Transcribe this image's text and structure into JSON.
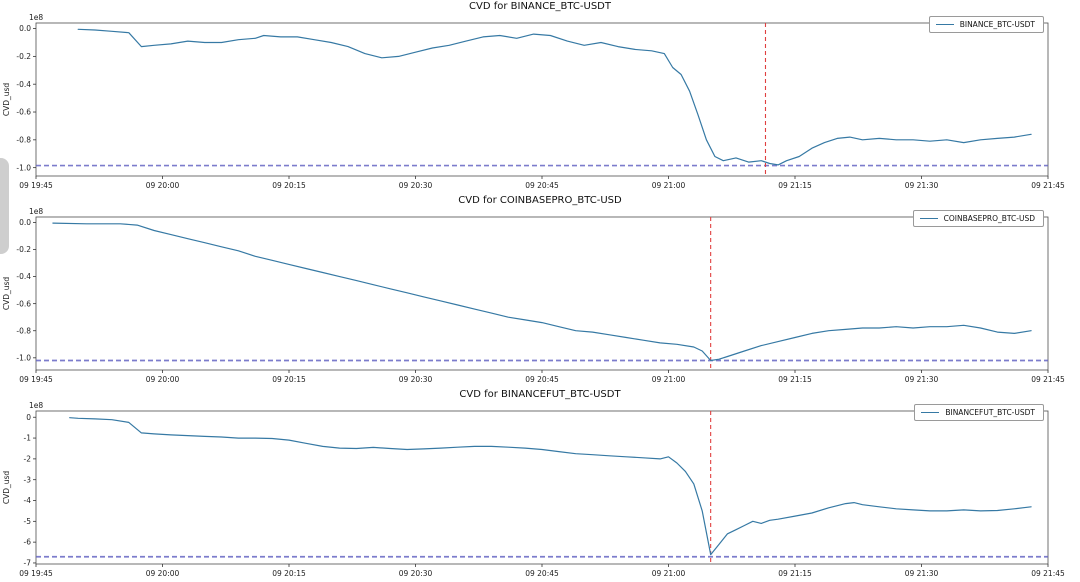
{
  "page": {
    "background": "#ffffff"
  },
  "chart_data": [
    {
      "type": "line",
      "title": "CVD for BINANCE_BTC-USDT",
      "legend": "BINANCE_BTC-USDT",
      "ylabel": "CVD_usd",
      "offset_label": "1e8",
      "xlim": [
        0,
        120
      ],
      "ylim": [
        -1.06,
        0.04
      ],
      "x_ticks": {
        "labels": [
          "09 19:45",
          "09 20:00",
          "09 20:15",
          "09 20:30",
          "09 20:45",
          "09 21:00",
          "09 21:15",
          "09 21:30",
          "09 21:45"
        ],
        "minutes": [
          0,
          15,
          30,
          45,
          60,
          75,
          90,
          105,
          120
        ]
      },
      "y_ticks": {
        "labels": [
          "0.0",
          "-0.2",
          "-0.4",
          "-0.6",
          "-0.8",
          "-1.0"
        ],
        "values": [
          0.0,
          -0.2,
          -0.4,
          -0.6,
          -0.8,
          -1.0
        ]
      },
      "vline": {
        "x_minutes": 86.5,
        "color": "#e04040",
        "style": "dashed"
      },
      "hline": {
        "y": -0.985,
        "color": "#6666c4",
        "style": "dashed"
      },
      "series": [
        {
          "name": "BINANCE_BTC-USDT",
          "color": "#3679a4",
          "points": [
            [
              5,
              -0.005
            ],
            [
              7,
              -0.01
            ],
            [
              9,
              -0.02
            ],
            [
              11,
              -0.03
            ],
            [
              12.5,
              -0.13
            ],
            [
              14,
              -0.12
            ],
            [
              16,
              -0.11
            ],
            [
              18,
              -0.09
            ],
            [
              20,
              -0.1
            ],
            [
              22,
              -0.1
            ],
            [
              24,
              -0.08
            ],
            [
              26,
              -0.07
            ],
            [
              27,
              -0.05
            ],
            [
              29,
              -0.06
            ],
            [
              31,
              -0.06
            ],
            [
              33,
              -0.08
            ],
            [
              35,
              -0.1
            ],
            [
              37,
              -0.13
            ],
            [
              39,
              -0.18
            ],
            [
              41,
              -0.21
            ],
            [
              43,
              -0.2
            ],
            [
              45,
              -0.17
            ],
            [
              47,
              -0.14
            ],
            [
              49,
              -0.12
            ],
            [
              51,
              -0.09
            ],
            [
              53,
              -0.06
            ],
            [
              55,
              -0.05
            ],
            [
              57,
              -0.07
            ],
            [
              59,
              -0.04
            ],
            [
              61,
              -0.05
            ],
            [
              63,
              -0.09
            ],
            [
              65,
              -0.12
            ],
            [
              67,
              -0.1
            ],
            [
              69,
              -0.13
            ],
            [
              71,
              -0.15
            ],
            [
              73,
              -0.16
            ],
            [
              74.5,
              -0.18
            ],
            [
              75.5,
              -0.28
            ],
            [
              76.5,
              -0.33
            ],
            [
              77.5,
              -0.45
            ],
            [
              78.5,
              -0.62
            ],
            [
              79.5,
              -0.8
            ],
            [
              80.5,
              -0.92
            ],
            [
              81.5,
              -0.95
            ],
            [
              83,
              -0.93
            ],
            [
              84.5,
              -0.96
            ],
            [
              86,
              -0.95
            ],
            [
              87,
              -0.97
            ],
            [
              88,
              -0.98
            ],
            [
              89,
              -0.95
            ],
            [
              90.5,
              -0.92
            ],
            [
              92,
              -0.86
            ],
            [
              93.5,
              -0.82
            ],
            [
              95,
              -0.79
            ],
            [
              96.5,
              -0.78
            ],
            [
              98,
              -0.8
            ],
            [
              100,
              -0.79
            ],
            [
              102,
              -0.8
            ],
            [
              104,
              -0.8
            ],
            [
              106,
              -0.81
            ],
            [
              108,
              -0.8
            ],
            [
              110,
              -0.82
            ],
            [
              112,
              -0.8
            ],
            [
              114,
              -0.79
            ],
            [
              116,
              -0.78
            ],
            [
              118,
              -0.76
            ]
          ]
        }
      ]
    },
    {
      "type": "line",
      "title": "CVD for COINBASEPRO_BTC-USD",
      "legend": "COINBASEPRO_BTC-USD",
      "ylabel": "CVD_usd",
      "offset_label": "1e8",
      "xlim": [
        0,
        120
      ],
      "ylim": [
        -1.09,
        0.04
      ],
      "x_ticks": {
        "labels": [
          "09 19:45",
          "09 20:00",
          "09 20:15",
          "09 20:30",
          "09 20:45",
          "09 21:00",
          "09 21:15",
          "09 21:30",
          "09 21:45"
        ],
        "minutes": [
          0,
          15,
          30,
          45,
          60,
          75,
          90,
          105,
          120
        ]
      },
      "y_ticks": {
        "labels": [
          "0.0",
          "-0.2",
          "-0.4",
          "-0.6",
          "-0.8",
          "-1.0"
        ],
        "values": [
          0.0,
          -0.2,
          -0.4,
          -0.6,
          -0.8,
          -1.0
        ]
      },
      "vline": {
        "x_minutes": 80,
        "color": "#e04040",
        "style": "dashed"
      },
      "hline": {
        "y": -1.02,
        "color": "#6666c4",
        "style": "dashed"
      },
      "series": [
        {
          "name": "COINBASEPRO_BTC-USD",
          "color": "#3679a4",
          "points": [
            [
              2,
              -0.005
            ],
            [
              6,
              -0.01
            ],
            [
              10,
              -0.01
            ],
            [
              12,
              -0.02
            ],
            [
              14,
              -0.06
            ],
            [
              16,
              -0.09
            ],
            [
              18,
              -0.12
            ],
            [
              20,
              -0.15
            ],
            [
              22,
              -0.18
            ],
            [
              24,
              -0.21
            ],
            [
              26,
              -0.25
            ],
            [
              28,
              -0.28
            ],
            [
              30,
              -0.31
            ],
            [
              32,
              -0.34
            ],
            [
              34,
              -0.37
            ],
            [
              36,
              -0.4
            ],
            [
              38,
              -0.43
            ],
            [
              40,
              -0.46
            ],
            [
              42,
              -0.49
            ],
            [
              44,
              -0.52
            ],
            [
              46,
              -0.55
            ],
            [
              48,
              -0.58
            ],
            [
              50,
              -0.61
            ],
            [
              52,
              -0.64
            ],
            [
              54,
              -0.67
            ],
            [
              56,
              -0.7
            ],
            [
              58,
              -0.72
            ],
            [
              60,
              -0.74
            ],
            [
              62,
              -0.77
            ],
            [
              64,
              -0.8
            ],
            [
              66,
              -0.81
            ],
            [
              68,
              -0.83
            ],
            [
              70,
              -0.85
            ],
            [
              72,
              -0.87
            ],
            [
              74,
              -0.89
            ],
            [
              76,
              -0.9
            ],
            [
              78,
              -0.92
            ],
            [
              79,
              -0.95
            ],
            [
              80,
              -1.02
            ],
            [
              81,
              -1.01
            ],
            [
              82,
              -0.99
            ],
            [
              84,
              -0.95
            ],
            [
              86,
              -0.91
            ],
            [
              88,
              -0.88
            ],
            [
              90,
              -0.85
            ],
            [
              92,
              -0.82
            ],
            [
              94,
              -0.8
            ],
            [
              96,
              -0.79
            ],
            [
              98,
              -0.78
            ],
            [
              100,
              -0.78
            ],
            [
              102,
              -0.77
            ],
            [
              104,
              -0.78
            ],
            [
              106,
              -0.77
            ],
            [
              108,
              -0.77
            ],
            [
              110,
              -0.76
            ],
            [
              112,
              -0.78
            ],
            [
              114,
              -0.81
            ],
            [
              116,
              -0.82
            ],
            [
              118,
              -0.8
            ]
          ]
        }
      ]
    },
    {
      "type": "line",
      "title": "CVD for BINANCEFUT_BTC-USDT",
      "legend": "BINANCEFUT_BTC-USDT",
      "ylabel": "CVD_usd",
      "offset_label": "1e8",
      "xlim": [
        0,
        120
      ],
      "ylim": [
        -7.05,
        0.3
      ],
      "x_ticks": {
        "labels": [
          "09 19:45",
          "09 20:00",
          "09 20:15",
          "09 20:30",
          "09 20:45",
          "09 21:00",
          "09 21:15",
          "09 21:30",
          "09 21:45"
        ],
        "minutes": [
          0,
          15,
          30,
          45,
          60,
          75,
          90,
          105,
          120
        ]
      },
      "y_ticks": {
        "labels": [
          "0",
          "-1",
          "-2",
          "-3",
          "-4",
          "-5",
          "-6",
          "-7"
        ],
        "values": [
          0,
          -1,
          -2,
          -3,
          -4,
          -5,
          -6,
          -7
        ]
      },
      "vline": {
        "x_minutes": 80,
        "color": "#e04040",
        "style": "dashed"
      },
      "hline": {
        "y": -6.7,
        "color": "#6666c4",
        "style": "dashed"
      },
      "series": [
        {
          "name": "BINANCEFUT_BTC-USDT",
          "color": "#3679a4",
          "points": [
            [
              4,
              -0.02
            ],
            [
              5,
              -0.05
            ],
            [
              7,
              -0.08
            ],
            [
              9,
              -0.12
            ],
            [
              11,
              -0.25
            ],
            [
              12.5,
              -0.75
            ],
            [
              14,
              -0.8
            ],
            [
              16,
              -0.85
            ],
            [
              18,
              -0.88
            ],
            [
              20,
              -0.92
            ],
            [
              22,
              -0.95
            ],
            [
              24,
              -1.0
            ],
            [
              26,
              -1.0
            ],
            [
              28,
              -1.02
            ],
            [
              30,
              -1.1
            ],
            [
              32,
              -1.25
            ],
            [
              34,
              -1.4
            ],
            [
              36,
              -1.48
            ],
            [
              38,
              -1.5
            ],
            [
              40,
              -1.45
            ],
            [
              42,
              -1.5
            ],
            [
              44,
              -1.55
            ],
            [
              46,
              -1.52
            ],
            [
              48,
              -1.48
            ],
            [
              50,
              -1.44
            ],
            [
              52,
              -1.4
            ],
            [
              54,
              -1.4
            ],
            [
              56,
              -1.44
            ],
            [
              58,
              -1.48
            ],
            [
              60,
              -1.55
            ],
            [
              62,
              -1.65
            ],
            [
              64,
              -1.75
            ],
            [
              66,
              -1.8
            ],
            [
              68,
              -1.85
            ],
            [
              70,
              -1.9
            ],
            [
              72,
              -1.95
            ],
            [
              74,
              -2.0
            ],
            [
              75,
              -1.9
            ],
            [
              76,
              -2.2
            ],
            [
              77,
              -2.6
            ],
            [
              78,
              -3.2
            ],
            [
              79,
              -4.5
            ],
            [
              80,
              -6.6
            ],
            [
              81,
              -6.1
            ],
            [
              82,
              -5.6
            ],
            [
              83,
              -5.4
            ],
            [
              84,
              -5.2
            ],
            [
              85,
              -5.0
            ],
            [
              86,
              -5.1
            ],
            [
              87,
              -4.95
            ],
            [
              88,
              -4.9
            ],
            [
              90,
              -4.75
            ],
            [
              92,
              -4.6
            ],
            [
              94,
              -4.35
            ],
            [
              95,
              -4.25
            ],
            [
              96,
              -4.15
            ],
            [
              97,
              -4.1
            ],
            [
              98,
              -4.2
            ],
            [
              100,
              -4.3
            ],
            [
              102,
              -4.4
            ],
            [
              104,
              -4.45
            ],
            [
              106,
              -4.5
            ],
            [
              108,
              -4.5
            ],
            [
              110,
              -4.45
            ],
            [
              112,
              -4.5
            ],
            [
              114,
              -4.48
            ],
            [
              116,
              -4.4
            ],
            [
              118,
              -4.3
            ]
          ]
        }
      ]
    }
  ]
}
